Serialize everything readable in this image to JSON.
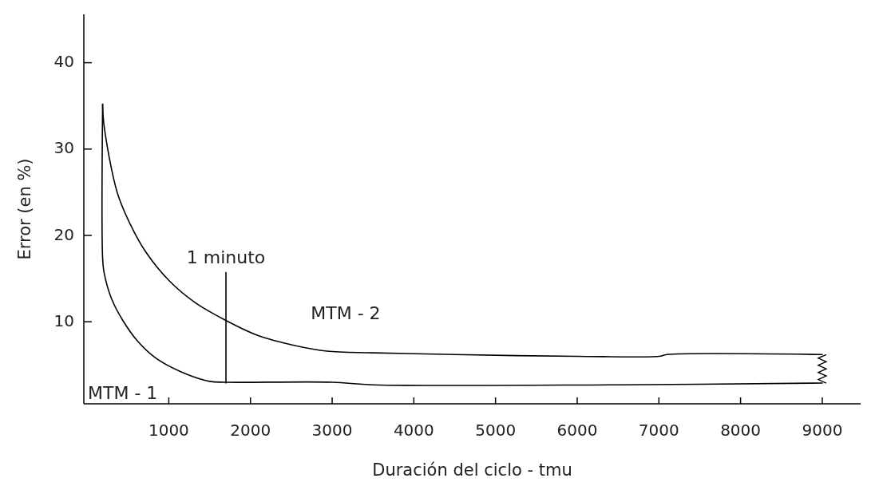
{
  "chart_data": {
    "type": "line",
    "xlabel": "Duración del ciclo - tmu",
    "ylabel": "Error (en %)",
    "xlim": [
      -40,
      9470
    ],
    "ylim": [
      0.5,
      45.6
    ],
    "xticks": [
      1000,
      2000,
      3000,
      4000,
      5000,
      6000,
      7000,
      8000,
      9000
    ],
    "yticks": [
      10,
      20,
      30,
      40
    ],
    "grid": false,
    "line_style": "solid",
    "annotations": [
      {
        "text": "1 minuto",
        "x": 1700,
        "y": 15.7
      }
    ],
    "series": [
      {
        "name": "MTM - 2",
        "color": "#000000",
        "x": [
          190,
          208,
          368,
          528,
          717,
          1000,
          1311,
          1689,
          2094,
          2566,
          2934,
          3500,
          4500,
          6000,
          7000,
          7100,
          9000
        ],
        "values": [
          35.2,
          32.7,
          25.0,
          21.3,
          18.1,
          14.8,
          12.3,
          10.2,
          8.4,
          7.2,
          6.6,
          6.4,
          6.2,
          6.0,
          6.0,
          6.2,
          6.2
        ]
      },
      {
        "name": "MTM - 1",
        "color": "#000000",
        "x": [
          190,
          190,
          208,
          302,
          434,
          623,
          840,
          1151,
          1500,
          1700,
          3000,
          3500,
          6500,
          9000
        ],
        "values": [
          35.2,
          17.4,
          15.7,
          12.6,
          10.2,
          7.7,
          5.8,
          4.2,
          3.1,
          3.0,
          3.0,
          2.7,
          2.7,
          2.9
        ]
      },
      {
        "color": "#000000",
        "x": [
          1700,
          1700
        ],
        "values": [
          2.9,
          15.7
        ]
      }
    ]
  }
}
